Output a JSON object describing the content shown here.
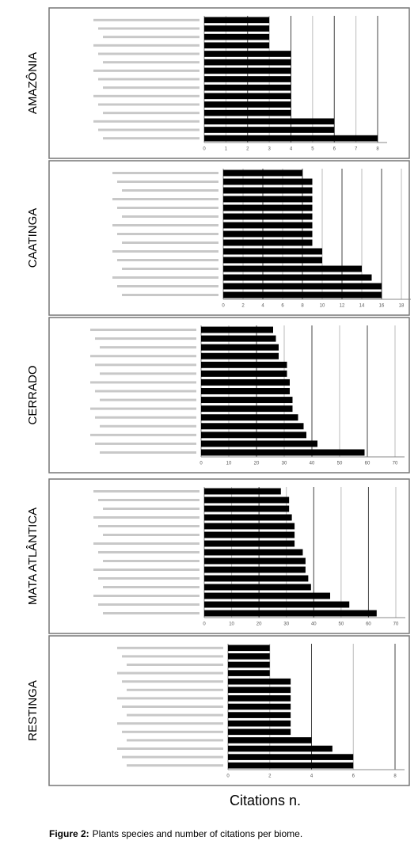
{
  "chart_data": [
    {
      "type": "bar",
      "orientation": "horizontal",
      "title": "AMAZÔNIA",
      "color": "#000000",
      "grid": true,
      "categories": [
        null,
        null,
        null,
        null,
        null,
        null,
        null,
        null,
        null,
        null,
        null,
        null,
        null,
        null,
        null
      ],
      "values": [
        3,
        3,
        3,
        3,
        4,
        4,
        4,
        4,
        4,
        4,
        4,
        4,
        6,
        6,
        8
      ],
      "xlim": [
        0,
        8
      ],
      "xticks": [
        0,
        1,
        2,
        3,
        4,
        5,
        6,
        7,
        8
      ]
    },
    {
      "type": "bar",
      "orientation": "horizontal",
      "title": "CAATINGA",
      "color": "#000000",
      "grid": true,
      "categories": [
        null,
        null,
        null,
        null,
        null,
        null,
        null,
        null,
        null,
        null,
        null,
        null,
        null,
        null,
        null
      ],
      "values": [
        8,
        9,
        9,
        9,
        9,
        9,
        9,
        9,
        9,
        10,
        10,
        14,
        15,
        16,
        16
      ],
      "xlim": [
        0,
        18
      ],
      "xticks": [
        0,
        2,
        4,
        6,
        8,
        10,
        12,
        14,
        16,
        18
      ]
    },
    {
      "type": "bar",
      "orientation": "horizontal",
      "title": "CERRADO",
      "color": "#000000",
      "grid": true,
      "categories": [
        null,
        null,
        null,
        null,
        null,
        null,
        null,
        null,
        null,
        null,
        null,
        null,
        null,
        null,
        null
      ],
      "values": [
        26,
        27,
        28,
        28,
        31,
        31,
        32,
        32,
        33,
        33,
        35,
        37,
        38,
        42,
        59
      ],
      "xlim": [
        0,
        70
      ],
      "xticks": [
        0,
        10,
        20,
        30,
        40,
        50,
        60,
        70
      ]
    },
    {
      "type": "bar",
      "orientation": "horizontal",
      "title": "MATA ATLÂNTICA",
      "color": "#000000",
      "grid": true,
      "categories": [
        null,
        null,
        null,
        null,
        null,
        null,
        null,
        null,
        null,
        null,
        null,
        null,
        null,
        null,
        null
      ],
      "values": [
        28,
        31,
        31,
        32,
        33,
        33,
        33,
        36,
        37,
        37,
        38,
        39,
        46,
        53,
        63
      ],
      "xlim": [
        0,
        70
      ],
      "xticks": [
        0,
        10,
        20,
        30,
        40,
        50,
        60,
        70
      ]
    },
    {
      "type": "bar",
      "orientation": "horizontal",
      "title": "RESTINGA",
      "color": "#000000",
      "grid": true,
      "categories": [
        null,
        null,
        null,
        null,
        null,
        null,
        null,
        null,
        null,
        null,
        null,
        null,
        null,
        null,
        null
      ],
      "values": [
        2,
        2,
        2,
        2,
        3,
        3,
        3,
        3,
        3,
        3,
        3,
        4,
        5,
        6,
        6
      ],
      "xlim": [
        0,
        8
      ],
      "xticks": [
        0,
        2,
        4,
        6,
        8
      ]
    }
  ],
  "axis_label": "Citations n.",
  "caption": {
    "label": "Figure 2:",
    "text": "Plants species and number of citations per biome."
  }
}
